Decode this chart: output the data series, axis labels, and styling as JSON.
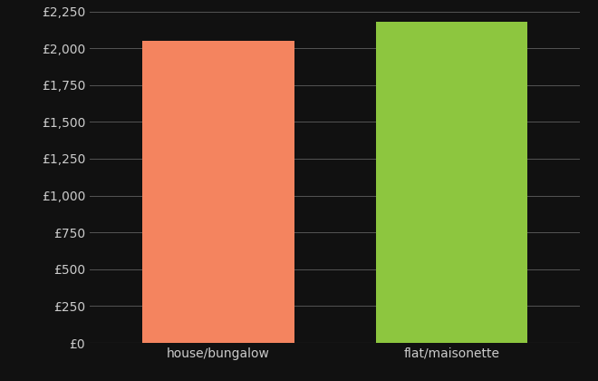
{
  "categories": [
    "house/bungalow",
    "flat/maisonette"
  ],
  "values": [
    2052,
    2178
  ],
  "bar_colors": [
    "#f4845f",
    "#8dc63f"
  ],
  "background_color": "#111111",
  "text_color": "#cccccc",
  "grid_color": "#555555",
  "ylim": [
    0,
    2250
  ],
  "ytick_step": 250,
  "bar_width": 0.65,
  "figsize": [
    6.6,
    4.2
  ],
  "dpi": 100,
  "font_size": 10
}
